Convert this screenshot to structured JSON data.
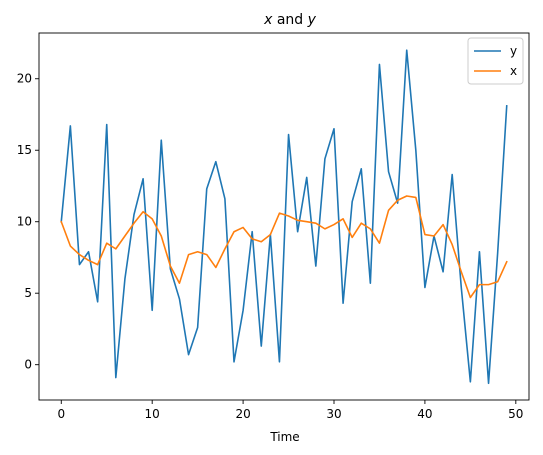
{
  "chart_data": {
    "type": "line",
    "title": "x and y",
    "xlabel": "Time",
    "ylabel": "",
    "xlim": [
      -2.45,
      51.45
    ],
    "ylim": [
      -2.47,
      23.2
    ],
    "xticks": [
      0,
      10,
      20,
      30,
      40,
      50
    ],
    "yticks": [
      0,
      5,
      10,
      15,
      20
    ],
    "grid": false,
    "legend_position": "top-right",
    "x": [
      0,
      1,
      2,
      3,
      4,
      5,
      6,
      7,
      8,
      9,
      10,
      11,
      12,
      13,
      14,
      15,
      16,
      17,
      18,
      19,
      20,
      21,
      22,
      23,
      24,
      25,
      26,
      27,
      28,
      29,
      30,
      31,
      32,
      33,
      34,
      35,
      36,
      37,
      38,
      39,
      40,
      41,
      42,
      43,
      44,
      45,
      46,
      47,
      48,
      49
    ],
    "series": [
      {
        "name": "y",
        "color": "#1f77b4",
        "values": [
          10.0,
          16.7,
          7.0,
          7.9,
          4.4,
          16.8,
          -0.9,
          6.0,
          10.5,
          13.0,
          3.8,
          15.7,
          6.7,
          4.6,
          0.7,
          2.6,
          12.3,
          14.2,
          11.6,
          0.2,
          3.8,
          9.3,
          1.3,
          9.1,
          0.2,
          16.1,
          9.3,
          13.1,
          6.9,
          14.4,
          16.5,
          4.3,
          11.4,
          13.7,
          5.7,
          21.0,
          13.5,
          11.3,
          22.0,
          15.0,
          5.4,
          9.0,
          6.5,
          13.3,
          5.4,
          -1.2,
          7.9,
          -1.3,
          7.8,
          18.1
        ]
      },
      {
        "name": "x",
        "color": "#ff7f0e",
        "values": [
          10.0,
          8.3,
          7.7,
          7.3,
          7.0,
          8.5,
          8.1,
          9.0,
          9.9,
          10.7,
          10.2,
          9.0,
          6.9,
          5.7,
          7.7,
          7.9,
          7.7,
          6.8,
          8.1,
          9.3,
          9.6,
          8.8,
          8.6,
          9.1,
          10.6,
          10.4,
          10.1,
          10.0,
          9.9,
          9.5,
          9.8,
          10.2,
          8.9,
          9.9,
          9.5,
          8.5,
          10.8,
          11.5,
          11.8,
          11.7,
          9.1,
          9.0,
          9.8,
          8.4,
          6.5,
          4.7,
          5.6,
          5.6,
          5.8,
          7.2
        ]
      }
    ]
  }
}
